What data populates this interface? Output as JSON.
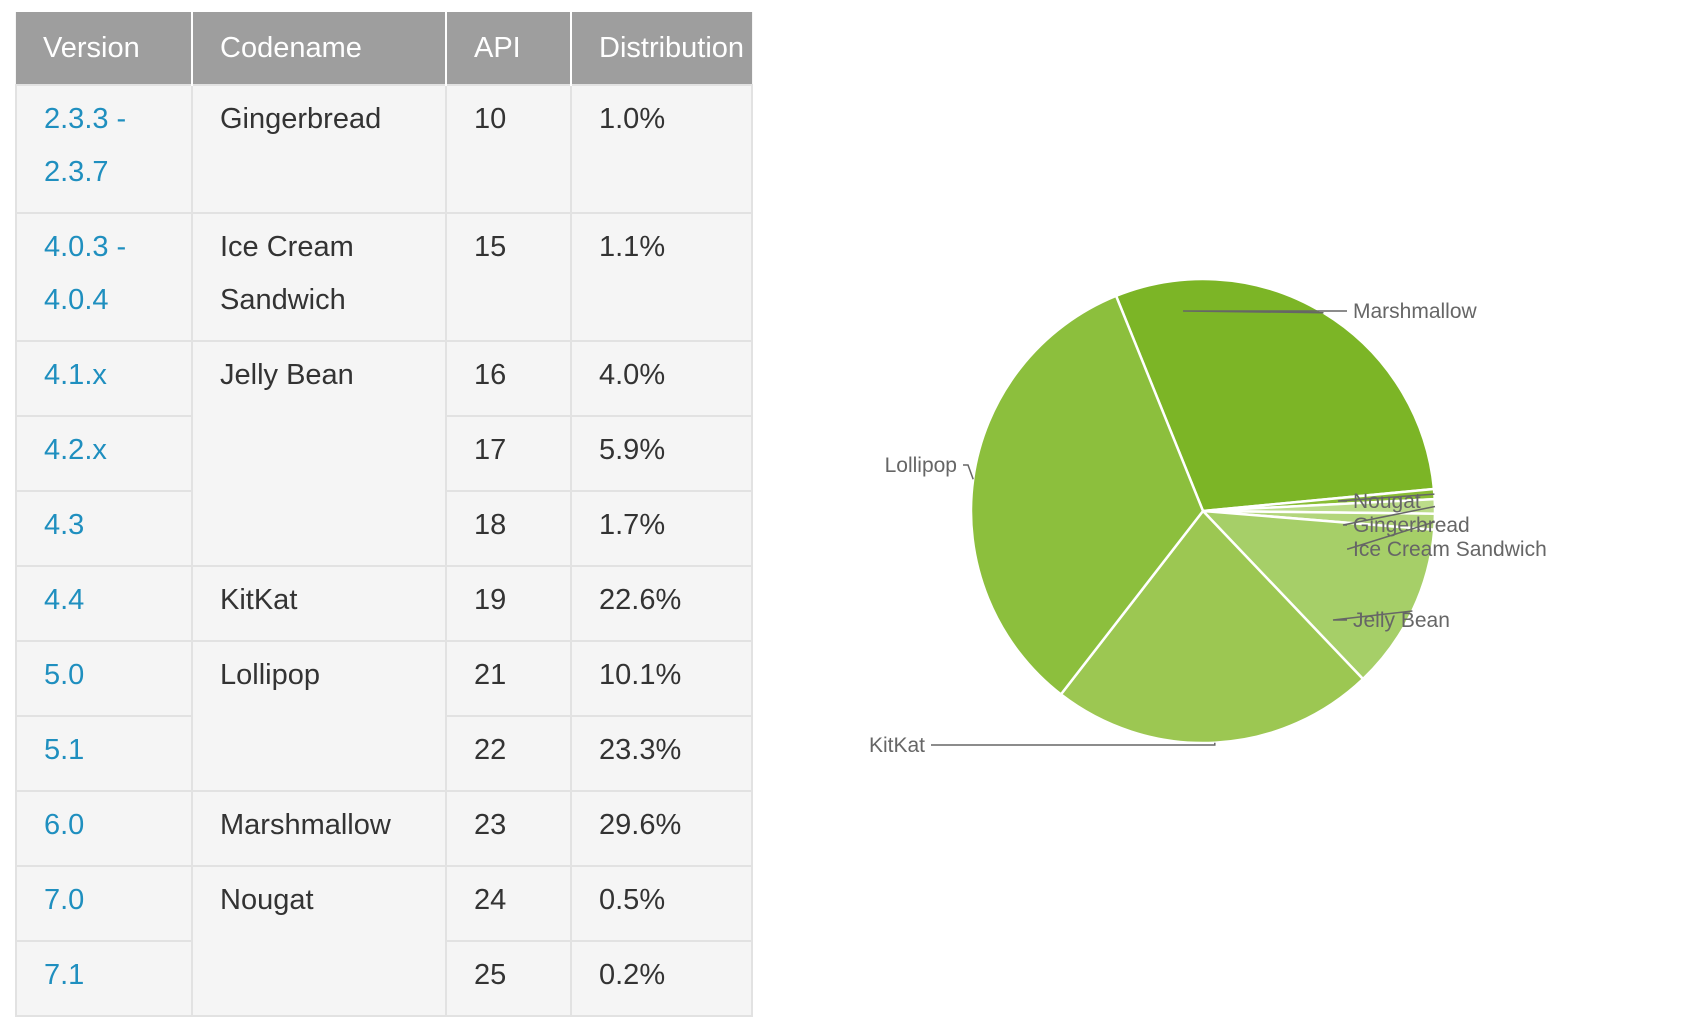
{
  "table": {
    "headers": {
      "version": "Version",
      "codename": "Codename",
      "api": "API",
      "distribution": "Distribution"
    },
    "rows": [
      {
        "version_line1": "2.3.3 -",
        "version_line2": "2.3.7",
        "codename_line1": "Gingerbread",
        "codename_line2": "",
        "api": "10",
        "distribution": "1.0%"
      },
      {
        "version_line1": "4.0.3 -",
        "version_line2": "4.0.4",
        "codename_line1": "Ice Cream",
        "codename_line2": "Sandwich",
        "api": "15",
        "distribution": "1.1%"
      },
      {
        "version_line1": "4.1.x",
        "codename_line1": "Jelly Bean",
        "api": "16",
        "distribution": "4.0%"
      },
      {
        "version_line1": "4.2.x",
        "api": "17",
        "distribution": "5.9%"
      },
      {
        "version_line1": "4.3",
        "api": "18",
        "distribution": "1.7%"
      },
      {
        "version_line1": "4.4",
        "codename_line1": "KitKat",
        "api": "19",
        "distribution": "22.6%"
      },
      {
        "version_line1": "5.0",
        "codename_line1": "Lollipop",
        "api": "21",
        "distribution": "10.1%"
      },
      {
        "version_line1": "5.1",
        "api": "22",
        "distribution": "23.3%"
      },
      {
        "version_line1": "6.0",
        "codename_line1": "Marshmallow",
        "api": "23",
        "distribution": "29.6%"
      },
      {
        "version_line1": "7.0",
        "codename_line1": "Nougat",
        "api": "24",
        "distribution": "0.5%"
      },
      {
        "version_line1": "7.1",
        "api": "25",
        "distribution": "0.2%"
      }
    ]
  },
  "chart_data": {
    "type": "pie",
    "title": "",
    "start_angle_deg": -112,
    "direction": "clockwise",
    "slices": [
      {
        "label": "Marshmallow",
        "value": 29.6,
        "color": "#7cb526"
      },
      {
        "label": "Nougat",
        "value": 0.7,
        "color": "#89bd34"
      },
      {
        "label": "Gingerbread",
        "value": 1.0,
        "color": "#bcdc8a"
      },
      {
        "label": "Ice Cream Sandwich",
        "value": 1.1,
        "color": "#b3d67b"
      },
      {
        "label": "Jelly Bean",
        "value": 11.6,
        "color": "#a6cf68"
      },
      {
        "label": "KitKat",
        "value": 22.6,
        "color": "#9cc752"
      },
      {
        "label": "Lollipop",
        "value": 33.4,
        "color": "#8cbf3d"
      }
    ],
    "legend": "none",
    "labels": "outside-with-leader-lines"
  }
}
